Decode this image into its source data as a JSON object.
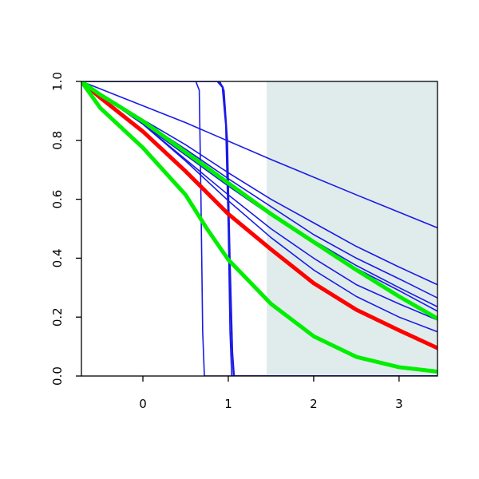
{
  "chart_data": {
    "type": "line",
    "title": "",
    "xlabel": "",
    "ylabel": "",
    "xlim": [
      -0.72,
      3.45
    ],
    "ylim": [
      0.0,
      1.0
    ],
    "x_ticks": [
      0,
      1,
      2,
      3
    ],
    "x_tick_labels": [
      "0",
      "1",
      "2",
      "3"
    ],
    "y_ticks": [
      0.0,
      0.2,
      0.4,
      0.6,
      0.8,
      1.0
    ],
    "y_tick_labels": [
      "0.0",
      "0.2",
      "0.4",
      "0.6",
      "0.8",
      "1.0"
    ],
    "grid": false,
    "shaded_region": {
      "x": [
        1.45,
        3.45
      ],
      "y": [
        0.0,
        1.0
      ],
      "color": "#e0ecec"
    },
    "colors": {
      "blue": "#1a1ae6",
      "red": "#ff0000",
      "green": "#00ee00"
    },
    "series": [
      {
        "color": "blue",
        "width": 1.6,
        "x": [
          -0.72,
          0.62,
          0.66,
          0.68,
          0.7,
          0.72,
          3.45
        ],
        "y": [
          1.0,
          1.0,
          0.97,
          0.6,
          0.15,
          0.0,
          0.0
        ]
      },
      {
        "color": "blue",
        "width": 1.6,
        "x": [
          -0.72,
          0.87,
          0.93,
          0.97,
          1.0,
          1.02,
          1.04,
          3.45
        ],
        "y": [
          1.0,
          1.0,
          0.98,
          0.85,
          0.5,
          0.15,
          0.0,
          0.0
        ]
      },
      {
        "color": "blue",
        "width": 1.6,
        "x": [
          -0.72,
          0.9,
          0.95,
          0.99,
          1.02,
          1.05,
          1.07,
          3.45
        ],
        "y": [
          1.0,
          1.0,
          0.97,
          0.8,
          0.4,
          0.08,
          0.0,
          0.0
        ]
      },
      {
        "color": "blue",
        "width": 1.6,
        "x": [
          -0.72,
          0.89,
          0.94,
          0.98,
          1.01,
          1.04,
          1.06,
          3.45
        ],
        "y": [
          1.0,
          1.0,
          0.98,
          0.82,
          0.45,
          0.1,
          0.0,
          0.0
        ]
      },
      {
        "color": "blue",
        "width": 1.6,
        "x": [
          -0.72,
          0.5,
          1.5,
          2.5,
          3.45
        ],
        "y": [
          1.0,
          0.86,
          0.735,
          0.615,
          0.503
        ]
      },
      {
        "color": "blue",
        "width": 1.6,
        "x": [
          -0.72,
          0.0,
          0.5,
          1.0,
          1.5,
          2.0,
          2.5,
          3.0,
          3.45
        ],
        "y": [
          1.0,
          0.87,
          0.785,
          0.69,
          0.6,
          0.52,
          0.44,
          0.37,
          0.31
        ]
      },
      {
        "color": "blue",
        "width": 1.6,
        "x": [
          -0.72,
          0.0,
          0.5,
          1.0,
          1.5,
          2.0,
          2.5,
          3.0,
          3.45
        ],
        "y": [
          1.0,
          0.865,
          0.77,
          0.67,
          0.575,
          0.48,
          0.4,
          0.33,
          0.265
        ]
      },
      {
        "color": "blue",
        "width": 1.6,
        "x": [
          -0.72,
          0.0,
          0.5,
          1.0,
          1.5,
          2.0,
          2.5,
          3.0,
          3.45
        ],
        "y": [
          1.0,
          0.86,
          0.76,
          0.655,
          0.555,
          0.46,
          0.375,
          0.3,
          0.235
        ]
      },
      {
        "color": "blue",
        "width": 1.6,
        "x": [
          -0.72,
          0.0,
          0.5,
          1.0,
          1.5,
          2.0,
          2.5,
          3.0,
          3.45
        ],
        "y": [
          1.0,
          0.855,
          0.75,
          0.645,
          0.545,
          0.45,
          0.365,
          0.29,
          0.22
        ]
      },
      {
        "color": "blue",
        "width": 1.6,
        "x": [
          -0.72,
          0.0,
          0.5,
          1.0,
          1.5,
          2.0,
          2.5,
          3.0,
          3.45
        ],
        "y": [
          1.0,
          0.855,
          0.735,
          0.615,
          0.5,
          0.4,
          0.31,
          0.245,
          0.19
        ]
      },
      {
        "color": "blue",
        "width": 1.6,
        "x": [
          -0.72,
          0.0,
          0.5,
          1.0,
          1.5,
          2.0,
          2.5,
          3.0,
          3.45
        ],
        "y": [
          1.0,
          0.855,
          0.73,
          0.595,
          0.47,
          0.36,
          0.27,
          0.2,
          0.15
        ]
      },
      {
        "color": "red",
        "width": 5,
        "x": [
          -0.72,
          -0.5,
          0.0,
          0.5,
          1.0,
          1.5,
          2.0,
          2.5,
          3.0,
          3.45
        ],
        "y": [
          1.0,
          0.945,
          0.83,
          0.695,
          0.55,
          0.43,
          0.315,
          0.225,
          0.155,
          0.095
        ]
      },
      {
        "color": "green",
        "width": 5,
        "x": [
          -0.72,
          -0.5,
          0.0,
          0.5,
          1.0,
          1.5,
          2.0,
          2.5,
          3.0,
          3.45
        ],
        "y": [
          1.0,
          0.955,
          0.865,
          0.76,
          0.655,
          0.55,
          0.455,
          0.36,
          0.27,
          0.195
        ]
      },
      {
        "color": "green",
        "width": 5,
        "x": [
          -0.72,
          -0.5,
          0.0,
          0.5,
          0.75,
          1.0,
          1.5,
          2.0,
          2.5,
          3.0,
          3.45
        ],
        "y": [
          1.0,
          0.91,
          0.775,
          0.615,
          0.5,
          0.395,
          0.245,
          0.135,
          0.065,
          0.03,
          0.015
        ]
      }
    ]
  }
}
